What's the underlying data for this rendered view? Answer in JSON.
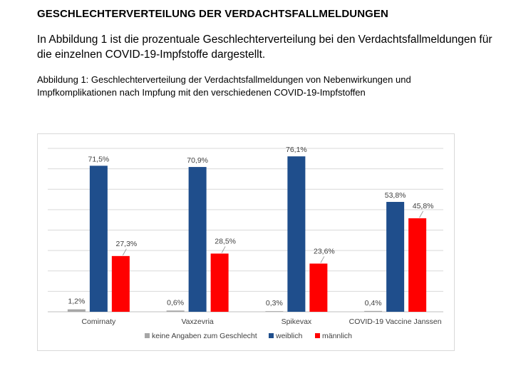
{
  "page": {
    "heading": "GESCHLECHTERVERTEILUNG DER VERDACHTSFALLMELDUNGEN",
    "intro": "In Abbildung 1 ist die prozentuale Geschlechterverteilung bei den Verdachtsfallmeldungen für die einzelnen COVID-19-Impfstoffe dargestellt.",
    "caption": "Abbildung 1: Geschlechterverteilung der Verdachtsfallmeldungen von Nebenwirkungen und Impfkomplikationen nach Impfung mit den verschiedenen COVID-19-Impfstoffen"
  },
  "chart_data": {
    "type": "bar",
    "title": "",
    "xlabel": "",
    "ylabel": "",
    "ylim": [
      0,
      80
    ],
    "grid": true,
    "legend_position": "bottom",
    "categories": [
      "Comirnaty",
      "Vaxzevria",
      "Spikevax",
      "COVID-19 Vaccine Janssen"
    ],
    "series": [
      {
        "name": "keine Angaben zum Geschlecht",
        "color": "#a6a6a6",
        "values": [
          1.2,
          0.6,
          0.3,
          0.4
        ],
        "labels": [
          "1,2%",
          "0,6%",
          "0,3%",
          "0,4%"
        ]
      },
      {
        "name": "weiblich",
        "color": "#1f4e8c",
        "values": [
          71.5,
          70.9,
          76.1,
          53.8
        ],
        "labels": [
          "71,5%",
          "70,9%",
          "76,1%",
          "53,8%"
        ]
      },
      {
        "name": "männlich",
        "color": "#ff0000",
        "values": [
          27.3,
          28.5,
          23.6,
          45.8
        ],
        "labels": [
          "27,3%",
          "28,5%",
          "23,6%",
          "45,8%"
        ]
      }
    ]
  }
}
